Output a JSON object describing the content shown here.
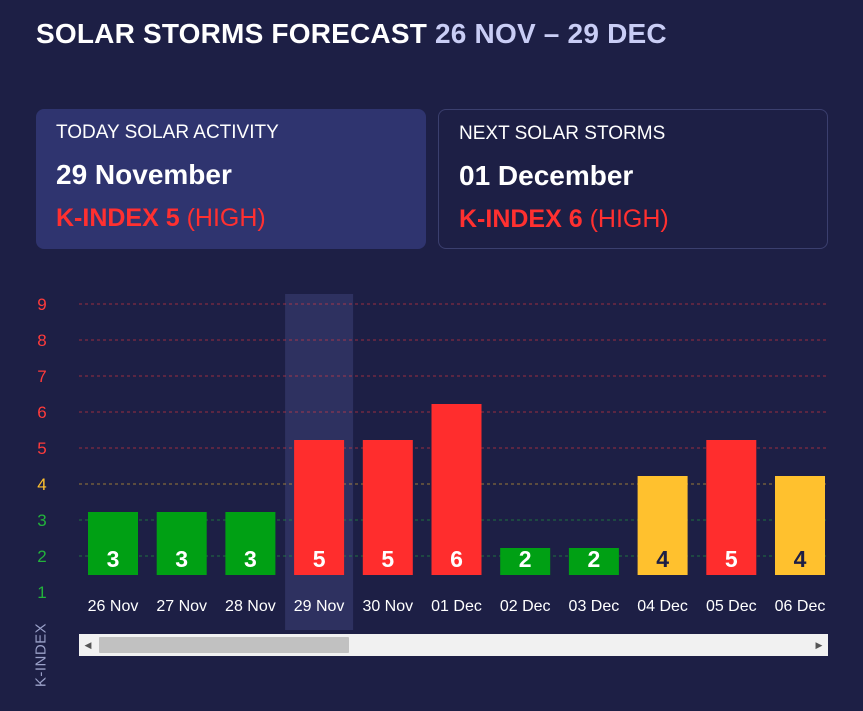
{
  "header": {
    "title": "SOLAR STORMS FORECAST",
    "range": "26 NOV – 29 DEC"
  },
  "today": {
    "label": "TODAY SOLAR ACTIVITY",
    "date": "29 November",
    "kindex_label": "K-INDEX 5",
    "level": "(HIGH)"
  },
  "next": {
    "label": "NEXT SOLAR STORMS",
    "date": "01 December",
    "kindex_label": "K-INDEX 6",
    "level": "(HIGH)"
  },
  "chart_data": {
    "type": "bar",
    "categories": [
      "26 Nov",
      "27 Nov",
      "28 Nov",
      "29 Nov",
      "30 Nov",
      "01 Dec",
      "02 Dec",
      "03 Dec",
      "04 Dec",
      "05 Dec",
      "06 Dec"
    ],
    "values": [
      3,
      3,
      3,
      5,
      5,
      6,
      2,
      2,
      4,
      5,
      4
    ],
    "ylabel": "K-INDEX",
    "yticks": [
      1,
      2,
      3,
      4,
      5,
      6,
      7,
      8,
      9
    ],
    "ylim": [
      1,
      9
    ],
    "highlighted_category": "29 Nov",
    "grid": true,
    "colors": {
      "low": "#00a014",
      "moderate": "#ffc12e",
      "high": "#ff2d2d",
      "tick_low": "#22b33b",
      "tick_moderate": "#ffc12e",
      "tick_high": "#ff3b3b"
    }
  },
  "scrollbar": {
    "left_icon": "arrow-left-icon",
    "right_icon": "arrow-right-icon"
  }
}
